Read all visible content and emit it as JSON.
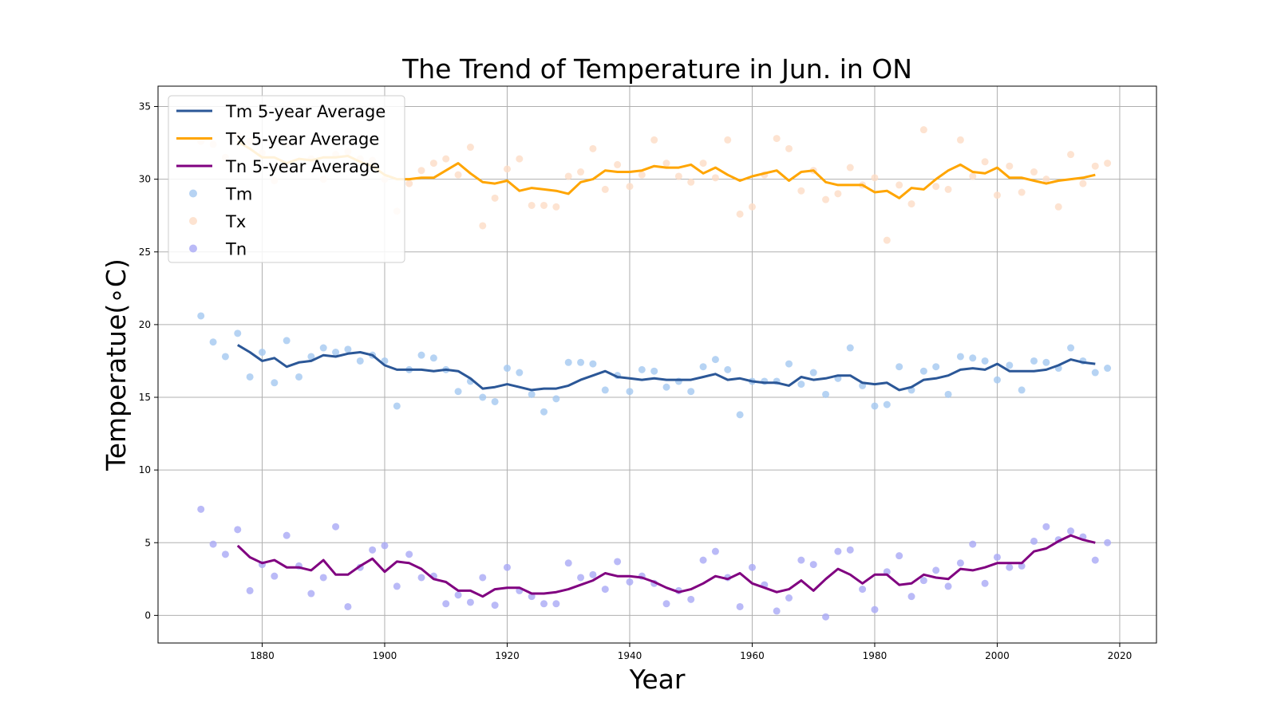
{
  "chart_data": {
    "type": "line",
    "title": "The Trend of Temperature in Jun. in ON",
    "xlabel": "Year",
    "ylabel": "Temperatue(∘C)",
    "xlim": [
      1863,
      2026
    ],
    "ylim": [
      -1.9,
      36.4
    ],
    "xticks": [
      1880,
      1900,
      1920,
      1940,
      1960,
      1980,
      2000,
      2020
    ],
    "yticks": [
      0,
      5,
      10,
      15,
      20,
      25,
      30,
      35
    ],
    "grid": true,
    "legend_position": "top-left",
    "scatter_years": [
      1870,
      1872,
      1874,
      1876,
      1878,
      1880,
      1882,
      1884,
      1886,
      1888,
      1890,
      1892,
      1894,
      1896,
      1898,
      1900,
      1902,
      1904,
      1906,
      1908,
      1910,
      1912,
      1914,
      1916,
      1918,
      1920,
      1922,
      1924,
      1926,
      1928,
      1930,
      1932,
      1934,
      1936,
      1938,
      1940,
      1942,
      1944,
      1946,
      1948,
      1950,
      1952,
      1954,
      1956,
      1958,
      1960,
      1962,
      1964,
      1966,
      1968,
      1970,
      1972,
      1974,
      1976,
      1978,
      1980,
      1982,
      1984,
      1986,
      1988,
      1990,
      1992,
      1994,
      1996,
      1998,
      2000,
      2002,
      2004,
      2006,
      2008,
      2010,
      2012,
      2014,
      2016,
      2018
    ],
    "avg_years": [
      1876,
      1878,
      1880,
      1882,
      1884,
      1886,
      1888,
      1890,
      1892,
      1894,
      1896,
      1898,
      1900,
      1902,
      1904,
      1906,
      1908,
      1910,
      1912,
      1914,
      1916,
      1918,
      1920,
      1922,
      1924,
      1926,
      1928,
      1930,
      1932,
      1934,
      1936,
      1938,
      1940,
      1942,
      1944,
      1946,
      1948,
      1950,
      1952,
      1954,
      1956,
      1958,
      1960,
      1962,
      1964,
      1966,
      1968,
      1970,
      1972,
      1974,
      1976,
      1978,
      1980,
      1982,
      1984,
      1986,
      1988,
      1990,
      1992,
      1994,
      1996,
      1998,
      2000,
      2002,
      2004,
      2006,
      2008,
      2010,
      2012,
      2014,
      2016
    ],
    "series": [
      {
        "name": "Tm 5-year Average",
        "kind": "line",
        "color": "#2b5797",
        "values": [
          18.6,
          18.1,
          17.5,
          17.7,
          17.1,
          17.4,
          17.5,
          17.9,
          17.8,
          18.0,
          18.1,
          17.9,
          17.2,
          16.9,
          16.9,
          16.9,
          16.8,
          16.9,
          16.8,
          16.3,
          15.6,
          15.7,
          15.9,
          15.7,
          15.5,
          15.6,
          15.6,
          15.8,
          16.2,
          16.5,
          16.8,
          16.4,
          16.3,
          16.2,
          16.3,
          16.2,
          16.2,
          16.2,
          16.4,
          16.6,
          16.2,
          16.3,
          16.1,
          16.0,
          16.0,
          15.8,
          16.4,
          16.2,
          16.3,
          16.5,
          16.5,
          16.0,
          15.9,
          16.0,
          15.5,
          15.7,
          16.2,
          16.3,
          16.5,
          16.9,
          17.0,
          16.9,
          17.3,
          16.8,
          16.8,
          16.8,
          16.9,
          17.2,
          17.6,
          17.4,
          17.3
        ]
      },
      {
        "name": "Tx 5-year Average",
        "kind": "line",
        "color": "#ffa500",
        "values": [
          32.6,
          32.1,
          31.5,
          31.5,
          31.1,
          31.4,
          31.3,
          31.5,
          31.5,
          31.6,
          31.2,
          30.9,
          30.3,
          30.0,
          30.0,
          30.1,
          30.1,
          30.6,
          31.1,
          30.4,
          29.8,
          29.7,
          29.9,
          29.2,
          29.4,
          29.3,
          29.2,
          29.0,
          29.8,
          30.0,
          30.6,
          30.5,
          30.5,
          30.6,
          30.9,
          30.8,
          30.8,
          31.0,
          30.4,
          30.8,
          30.3,
          29.9,
          30.2,
          30.4,
          30.6,
          29.9,
          30.5,
          30.6,
          29.8,
          29.6,
          29.6,
          29.6,
          29.1,
          29.2,
          28.7,
          29.4,
          29.3,
          30.0,
          30.6,
          31.0,
          30.5,
          30.4,
          30.8,
          30.1,
          30.1,
          29.9,
          29.7,
          29.9,
          30.0,
          30.1,
          30.3
        ]
      },
      {
        "name": "Tn 5-year Average",
        "kind": "line",
        "color": "#800080",
        "values": [
          4.8,
          4.0,
          3.6,
          3.8,
          3.3,
          3.3,
          3.1,
          3.8,
          2.8,
          2.8,
          3.4,
          3.9,
          3.0,
          3.7,
          3.6,
          3.2,
          2.5,
          2.3,
          1.7,
          1.7,
          1.3,
          1.8,
          1.9,
          1.9,
          1.5,
          1.5,
          1.6,
          1.8,
          2.1,
          2.4,
          2.9,
          2.7,
          2.7,
          2.6,
          2.3,
          1.9,
          1.6,
          1.8,
          2.2,
          2.7,
          2.5,
          2.9,
          2.2,
          1.9,
          1.6,
          1.8,
          2.4,
          1.7,
          2.5,
          3.2,
          2.8,
          2.2,
          2.8,
          2.8,
          2.1,
          2.2,
          2.8,
          2.6,
          2.5,
          3.2,
          3.1,
          3.3,
          3.6,
          3.6,
          3.6,
          4.4,
          4.6,
          5.1,
          5.5,
          5.2,
          5.0
        ]
      },
      {
        "name": "Tm",
        "kind": "scatter",
        "color": "#a4c8f0",
        "values": [
          20.6,
          18.8,
          17.8,
          19.4,
          16.4,
          18.1,
          16.0,
          18.9,
          16.4,
          17.8,
          18.4,
          18.1,
          18.3,
          17.5,
          17.9,
          17.5,
          14.4,
          16.9,
          17.9,
          17.7,
          16.9,
          15.4,
          16.1,
          15.0,
          14.7,
          17.0,
          16.7,
          15.2,
          14.0,
          14.9,
          17.4,
          17.4,
          17.3,
          15.5,
          16.5,
          15.4,
          16.9,
          16.8,
          15.7,
          16.1,
          15.4,
          17.1,
          17.6,
          16.9,
          13.8,
          16.1,
          16.1,
          16.1,
          17.3,
          15.9,
          16.7,
          15.2,
          16.3,
          18.4,
          15.8,
          14.4,
          14.5,
          17.1,
          15.5,
          16.8,
          17.1,
          15.2,
          17.8,
          17.7,
          17.5,
          16.2,
          17.2,
          15.5,
          17.5,
          17.4,
          17.0,
          18.4,
          17.5,
          16.7,
          17.0
        ]
      },
      {
        "name": "Tx",
        "kind": "scatter",
        "color": "#fddcc6",
        "values": [
          32.6,
          32.4,
          31.5,
          33.0,
          32.6,
          31.8,
          29.9,
          32.4,
          30.8,
          31.4,
          30.0,
          31.7,
          31.9,
          31.4,
          31.3,
          30.0,
          27.8,
          29.7,
          30.6,
          31.1,
          31.4,
          30.3,
          32.2,
          26.8,
          28.7,
          30.7,
          31.4,
          28.2,
          28.2,
          28.1,
          30.2,
          30.5,
          32.1,
          29.3,
          31.0,
          29.5,
          30.3,
          32.7,
          31.1,
          30.2,
          29.8,
          31.1,
          30.1,
          32.7,
          27.6,
          28.1,
          30.3,
          32.8,
          32.1,
          29.2,
          30.6,
          28.6,
          29.0,
          30.8,
          29.6,
          30.1,
          25.8,
          29.6,
          28.3,
          33.4,
          29.5,
          29.3,
          32.7,
          30.2,
          31.2,
          28.9,
          30.9,
          29.1,
          30.5,
          30.0,
          28.1,
          31.7,
          29.7,
          30.9,
          31.1
        ]
      },
      {
        "name": "Tn",
        "kind": "scatter",
        "color": "#a9a9f5",
        "values": [
          7.3,
          4.9,
          4.2,
          5.9,
          1.7,
          3.5,
          2.7,
          5.5,
          3.4,
          1.5,
          2.6,
          6.1,
          0.6,
          3.3,
          4.5,
          4.8,
          2.0,
          4.2,
          2.6,
          2.7,
          0.8,
          1.4,
          0.9,
          2.6,
          0.7,
          3.3,
          1.7,
          1.3,
          0.8,
          0.8,
          3.6,
          2.6,
          2.8,
          1.8,
          3.7,
          2.3,
          2.7,
          2.2,
          0.8,
          1.7,
          1.1,
          3.8,
          4.4,
          2.6,
          0.6,
          3.3,
          2.1,
          0.3,
          1.2,
          3.8,
          3.5,
          -0.1,
          4.4,
          4.5,
          1.8,
          0.4,
          3.0,
          4.1,
          1.3,
          2.4,
          3.1,
          2.0,
          3.6,
          4.9,
          2.2,
          4.0,
          3.3,
          3.4,
          5.1,
          6.1,
          5.2,
          5.8,
          5.4,
          3.8,
          5.0
        ]
      }
    ]
  }
}
